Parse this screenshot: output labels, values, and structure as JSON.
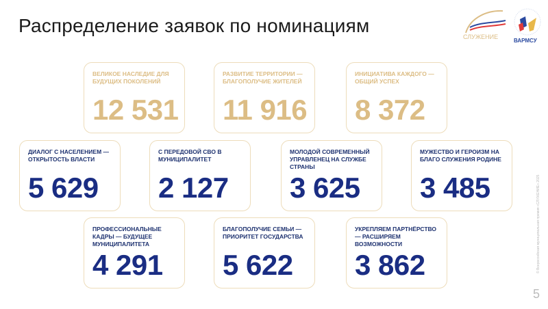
{
  "title": "Распределение заявок по номинациям",
  "logos": {
    "left": "СЛУЖЕНИЕ",
    "right": "ВАРМСУ"
  },
  "colors": {
    "gold": "#dcbd85",
    "blue": "#1a2d83",
    "border": "#eddcba"
  },
  "cards": [
    {
      "label": "Великое наследие для будущих поколений",
      "value": "12 531",
      "style": "gold"
    },
    {
      "label": "Развитие территории — благополучие жителей",
      "value": "11 916",
      "style": "gold"
    },
    {
      "label": "Инициатива каждого — общий успех",
      "value": "8 372",
      "style": "gold"
    },
    {
      "label": "Диалог с населением — открытость власти",
      "value": "5 629",
      "style": "blue"
    },
    {
      "label": "С передовой СВО в муниципалитет",
      "value": "2 127",
      "style": "blue"
    },
    {
      "label": "Молодой современный управленец на службе страны",
      "value": "3 625",
      "style": "blue"
    },
    {
      "label": "Мужество и героизм на благо служения Родине",
      "value": "3 485",
      "style": "blue"
    },
    {
      "label": "Профессиональные кадры — будущее муниципалитета",
      "value": "4 291",
      "style": "blue"
    },
    {
      "label": "Благополучие семьи — приоритет государства",
      "value": "5 622",
      "style": "blue"
    },
    {
      "label": "Укрепляем партнёрство — расширяем возможности",
      "value": "3 862",
      "style": "blue"
    }
  ],
  "footer": {
    "copyright": "© Всероссийская муниципальная премия «СЛУЖЕНИЕ» 2025",
    "page": "5"
  }
}
